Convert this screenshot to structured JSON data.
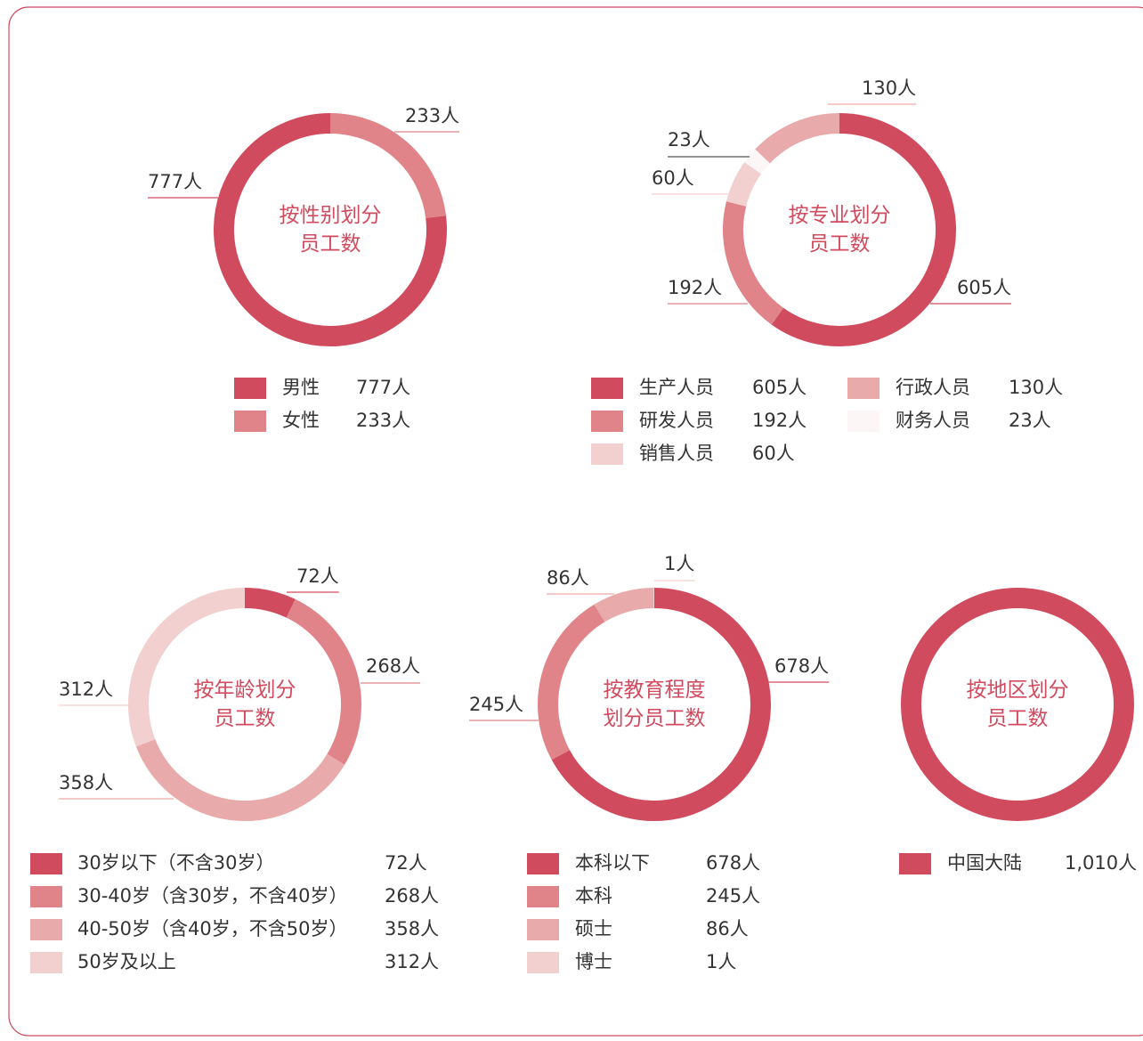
{
  "chart_data": [
    {
      "type": "pie",
      "title": "按性别划分员工数",
      "categories": [
        "男性",
        "女性"
      ],
      "values": [
        777,
        233
      ],
      "value_labels": [
        "777人",
        "233人"
      ],
      "colors": [
        "#d14b5f",
        "#e08489"
      ],
      "clockwise": false
    },
    {
      "type": "pie",
      "title": "按专业划分员工数",
      "categories": [
        "生产人员",
        "研发人员",
        "销售人员",
        "财务人员",
        "行政人员"
      ],
      "values": [
        605,
        192,
        60,
        23,
        130
      ],
      "value_labels": [
        "605人",
        "192人",
        "60人",
        "23人",
        "130人"
      ],
      "colors": [
        "#d14b5f",
        "#e08489",
        "#f2d0cf",
        "#fdf6f6",
        "#e9aaab"
      ],
      "clockwise": true
    },
    {
      "type": "pie",
      "title": "按年龄划分员工数",
      "categories": [
        "30岁以下（不含30岁）",
        "30-40岁（含30岁，不含40岁）",
        "40-50岁（含40岁，不含50岁）",
        "50岁及以上"
      ],
      "values": [
        72,
        268,
        358,
        312
      ],
      "value_labels": [
        "72人",
        "268人",
        "358人",
        "312人"
      ],
      "colors": [
        "#d14b5f",
        "#e08489",
        "#e9aaab",
        "#f2d0cf"
      ],
      "clockwise": true
    },
    {
      "type": "pie",
      "title": "按教育程度划分员工数",
      "categories": [
        "本科以下",
        "本科",
        "硕士",
        "博士"
      ],
      "values": [
        678,
        245,
        86,
        1
      ],
      "value_labels": [
        "678人",
        "245人",
        "86人",
        "1人"
      ],
      "colors": [
        "#d14b5f",
        "#e08489",
        "#e9aaab",
        "#f2d0cf"
      ],
      "clockwise": true
    },
    {
      "type": "pie",
      "title": "按地区划分员工数",
      "categories": [
        "中国大陆"
      ],
      "values": [
        1010
      ],
      "value_labels": [
        "1,010人"
      ],
      "colors": [
        "#d14b5f"
      ],
      "clockwise": true
    }
  ]
}
